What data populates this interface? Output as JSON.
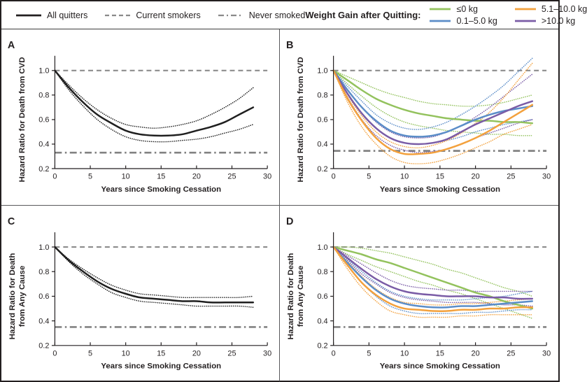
{
  "legend": {
    "left_items": [
      {
        "label": "All quitters",
        "style": "solid",
        "color": "#231f20"
      },
      {
        "label": "Current smokers",
        "style": "dashed",
        "color": "#8a8a8a"
      },
      {
        "label": "Never smoked",
        "style": "dashdot",
        "color": "#8a8a8a"
      }
    ],
    "weight_gain_title": "Weight Gain after Quitting:",
    "weight_items": [
      {
        "label": "≤0 kg",
        "color": "#93c25d"
      },
      {
        "label": "0.1–5.0 kg",
        "color": "#5b8dc8"
      },
      {
        "label": "5.1–10.0 kg",
        "color": "#f3a13d"
      },
      {
        "label": ">10.0 kg",
        "color": "#7a5ca6"
      }
    ]
  },
  "chart_data": [
    {
      "panel": "A",
      "type": "line",
      "ylabel_lines": [
        "Hazard Ratio for Death from CVD"
      ],
      "xlabel": "Years since Smoking Cessation",
      "xlim": [
        0,
        30
      ],
      "ylim": [
        0.2,
        1.12
      ],
      "xticks": [
        0,
        5,
        10,
        15,
        20,
        25,
        30
      ],
      "xtick_labels": [
        "0",
        "5",
        "10",
        "15",
        "20",
        "25",
        "30"
      ],
      "yticks": [
        0.2,
        0.4,
        0.6,
        0.8,
        1.0
      ],
      "ytick_labels": [
        "0.2",
        "0.4",
        "0.6",
        "0.8",
        "1.0"
      ],
      "grid": false,
      "x": [
        0,
        2,
        4,
        6,
        8,
        10,
        12,
        14,
        16,
        18,
        20,
        22,
        24,
        26,
        28
      ],
      "reference_lines": [
        {
          "label": "Current smokers",
          "value": 1.0,
          "style": "dashed",
          "color": "#8c8c8c"
        },
        {
          "label": "Never smoked",
          "value": 0.33,
          "style": "dashdot",
          "color": "#828282"
        }
      ],
      "series": [
        {
          "name": "All quitters",
          "color": "#1f1f1f",
          "values": [
            1.0,
            0.86,
            0.74,
            0.64,
            0.57,
            0.51,
            0.48,
            0.47,
            0.47,
            0.48,
            0.51,
            0.54,
            0.58,
            0.64,
            0.7
          ],
          "ci_upper": [
            1.0,
            0.88,
            0.77,
            0.68,
            0.61,
            0.56,
            0.54,
            0.53,
            0.54,
            0.56,
            0.59,
            0.64,
            0.7,
            0.77,
            0.86
          ],
          "ci_lower": [
            1.0,
            0.84,
            0.71,
            0.6,
            0.52,
            0.46,
            0.43,
            0.42,
            0.42,
            0.43,
            0.44,
            0.46,
            0.49,
            0.52,
            0.56
          ]
        }
      ]
    },
    {
      "panel": "B",
      "type": "line",
      "ylabel_lines": [
        "Hazard Ratio for Death from CVD"
      ],
      "xlabel": "Years since Smoking Cessation",
      "xlim": [
        0,
        30
      ],
      "ylim": [
        0.2,
        1.12
      ],
      "xticks": [
        0,
        5,
        10,
        15,
        20,
        25,
        30
      ],
      "xtick_labels": [
        "0",
        "5",
        "10",
        "15",
        "20",
        "25",
        "30"
      ],
      "yticks": [
        0.2,
        0.4,
        0.6,
        0.8,
        1.0
      ],
      "ytick_labels": [
        "0.2",
        "0.4",
        "0.6",
        "0.8",
        "1.0"
      ],
      "grid": false,
      "x": [
        0,
        2,
        4,
        6,
        8,
        10,
        12,
        14,
        16,
        18,
        20,
        22,
        24,
        26,
        28
      ],
      "reference_lines": [
        {
          "label": "Current smokers",
          "value": 1.0,
          "style": "dashed",
          "color": "#8c8c8c"
        },
        {
          "label": "Never smoked",
          "value": 0.345,
          "style": "dashdot",
          "color": "#828282"
        }
      ],
      "series": [
        {
          "name": "≤0 kg",
          "color": "#93c25d",
          "values": [
            1.0,
            0.92,
            0.84,
            0.77,
            0.72,
            0.68,
            0.65,
            0.63,
            0.61,
            0.6,
            0.59,
            0.59,
            0.58,
            0.58,
            0.57
          ],
          "ci_upper": [
            1.0,
            0.95,
            0.9,
            0.85,
            0.81,
            0.78,
            0.75,
            0.73,
            0.72,
            0.71,
            0.71,
            0.72,
            0.74,
            0.77,
            0.8
          ],
          "ci_lower": [
            1.0,
            0.89,
            0.79,
            0.7,
            0.63,
            0.58,
            0.55,
            0.53,
            0.51,
            0.5,
            0.49,
            0.48,
            0.48,
            0.47,
            0.47
          ]
        },
        {
          "name": "0.1–5.0 kg",
          "color": "#5b8dc8",
          "values": [
            1.0,
            0.84,
            0.7,
            0.59,
            0.51,
            0.47,
            0.46,
            0.47,
            0.5,
            0.55,
            0.6,
            0.64,
            0.67,
            0.69,
            0.71
          ],
          "ci_upper": [
            1.0,
            0.87,
            0.75,
            0.64,
            0.57,
            0.53,
            0.52,
            0.54,
            0.58,
            0.64,
            0.71,
            0.79,
            0.88,
            0.99,
            1.1
          ],
          "ci_lower": [
            1.0,
            0.81,
            0.65,
            0.53,
            0.45,
            0.41,
            0.4,
            0.41,
            0.43,
            0.46,
            0.5,
            0.53,
            0.56,
            0.58,
            0.6
          ]
        },
        {
          "name": ">10.0 kg",
          "color": "#7a5ca6",
          "values": [
            1.0,
            0.81,
            0.65,
            0.53,
            0.45,
            0.41,
            0.4,
            0.41,
            0.44,
            0.5,
            0.56,
            0.61,
            0.66,
            0.71,
            0.75
          ],
          "ci_upper": [
            1.0,
            0.84,
            0.7,
            0.58,
            0.5,
            0.46,
            0.45,
            0.46,
            0.5,
            0.55,
            0.62,
            0.7,
            0.79,
            0.88,
            0.97
          ],
          "ci_lower": [
            1.0,
            0.78,
            0.6,
            0.47,
            0.39,
            0.35,
            0.33,
            0.34,
            0.36,
            0.4,
            0.45,
            0.49,
            0.53,
            0.57,
            0.6
          ]
        },
        {
          "name": "5.1–10.0 kg",
          "color": "#f3a13d",
          "values": [
            1.0,
            0.77,
            0.59,
            0.45,
            0.36,
            0.32,
            0.32,
            0.33,
            0.36,
            0.4,
            0.45,
            0.51,
            0.58,
            0.65,
            0.72
          ],
          "ci_upper": [
            1.0,
            0.8,
            0.63,
            0.5,
            0.42,
            0.38,
            0.37,
            0.39,
            0.43,
            0.49,
            0.57,
            0.66,
            0.78,
            0.92,
            1.06
          ],
          "ci_lower": [
            1.0,
            0.74,
            0.54,
            0.4,
            0.3,
            0.25,
            0.24,
            0.25,
            0.28,
            0.32,
            0.37,
            0.42,
            0.48,
            0.52,
            0.56
          ]
        }
      ]
    },
    {
      "panel": "C",
      "type": "line",
      "ylabel_lines": [
        "Hazard Ratio for Death",
        "from Any Cause"
      ],
      "xlabel": "Years since Smoking Cessation",
      "xlim": [
        0,
        30
      ],
      "ylim": [
        0.2,
        1.12
      ],
      "xticks": [
        0,
        5,
        10,
        15,
        20,
        25,
        30
      ],
      "xtick_labels": [
        "0",
        "5",
        "10",
        "15",
        "20",
        "25",
        "30"
      ],
      "yticks": [
        0.2,
        0.4,
        0.6,
        0.8,
        1.0
      ],
      "ytick_labels": [
        "0.2",
        "0.4",
        "0.6",
        "0.8",
        "1.0"
      ],
      "grid": false,
      "x": [
        0,
        2,
        4,
        6,
        8,
        10,
        12,
        14,
        16,
        18,
        20,
        22,
        24,
        26,
        28
      ],
      "reference_lines": [
        {
          "label": "Current smokers",
          "value": 1.0,
          "style": "dashed",
          "color": "#8c8c8c"
        },
        {
          "label": "Never smoked",
          "value": 0.35,
          "style": "dashdot",
          "color": "#828282"
        }
      ],
      "series": [
        {
          "name": "All quitters",
          "color": "#1f1f1f",
          "values": [
            1.0,
            0.89,
            0.8,
            0.72,
            0.66,
            0.62,
            0.59,
            0.58,
            0.57,
            0.56,
            0.56,
            0.55,
            0.55,
            0.55,
            0.55
          ],
          "ci_upper": [
            1.0,
            0.9,
            0.82,
            0.75,
            0.69,
            0.65,
            0.62,
            0.61,
            0.6,
            0.59,
            0.59,
            0.59,
            0.59,
            0.59,
            0.6
          ],
          "ci_lower": [
            1.0,
            0.88,
            0.78,
            0.7,
            0.63,
            0.59,
            0.56,
            0.55,
            0.54,
            0.53,
            0.52,
            0.52,
            0.52,
            0.52,
            0.51
          ]
        }
      ]
    },
    {
      "panel": "D",
      "type": "line",
      "ylabel_lines": [
        "Hazard Ratio for Death",
        "from Any Cause"
      ],
      "xlabel": "Years since Smoking Cessation",
      "xlim": [
        0,
        30
      ],
      "ylim": [
        0.2,
        1.12
      ],
      "xticks": [
        0,
        5,
        10,
        15,
        20,
        25,
        30
      ],
      "xtick_labels": [
        "0",
        "5",
        "10",
        "15",
        "20",
        "25",
        "30"
      ],
      "yticks": [
        0.2,
        0.4,
        0.6,
        0.8,
        1.0
      ],
      "ytick_labels": [
        "0.2",
        "0.4",
        "0.6",
        "0.8",
        "1.0"
      ],
      "grid": false,
      "x": [
        0,
        2,
        4,
        6,
        8,
        10,
        12,
        14,
        16,
        18,
        20,
        22,
        24,
        26,
        28
      ],
      "reference_lines": [
        {
          "label": "Current smokers",
          "value": 1.0,
          "style": "dashed",
          "color": "#8c8c8c"
        },
        {
          "label": "Never smoked",
          "value": 0.35,
          "style": "dashdot",
          "color": "#828282"
        }
      ],
      "series": [
        {
          "name": "≤0 kg",
          "color": "#93c25d",
          "values": [
            1.0,
            0.97,
            0.94,
            0.9,
            0.87,
            0.83,
            0.79,
            0.75,
            0.71,
            0.67,
            0.63,
            0.6,
            0.56,
            0.53,
            0.5
          ],
          "ci_upper": [
            1.0,
            1.0,
            0.99,
            0.97,
            0.95,
            0.92,
            0.89,
            0.86,
            0.82,
            0.79,
            0.75,
            0.71,
            0.67,
            0.64,
            0.6
          ],
          "ci_lower": [
            1.0,
            0.94,
            0.89,
            0.84,
            0.8,
            0.76,
            0.72,
            0.69,
            0.65,
            0.62,
            0.58,
            0.54,
            0.5,
            0.46,
            0.42
          ]
        },
        {
          "name": "0.1–5.0 kg",
          "color": "#5b8dc8",
          "values": [
            1.0,
            0.87,
            0.75,
            0.65,
            0.58,
            0.54,
            0.52,
            0.51,
            0.51,
            0.52,
            0.52,
            0.53,
            0.54,
            0.55,
            0.56
          ],
          "ci_upper": [
            1.0,
            0.9,
            0.8,
            0.71,
            0.64,
            0.6,
            0.58,
            0.57,
            0.57,
            0.57,
            0.58,
            0.59,
            0.6,
            0.62,
            0.64
          ],
          "ci_lower": [
            1.0,
            0.85,
            0.71,
            0.6,
            0.52,
            0.48,
            0.46,
            0.46,
            0.46,
            0.46,
            0.47,
            0.47,
            0.48,
            0.49,
            0.49
          ]
        },
        {
          "name": ">10.0 kg",
          "color": "#7a5ca6",
          "values": [
            1.0,
            0.91,
            0.82,
            0.74,
            0.68,
            0.64,
            0.62,
            0.61,
            0.6,
            0.6,
            0.6,
            0.59,
            0.59,
            0.58,
            0.58
          ],
          "ci_upper": [
            1.0,
            0.93,
            0.86,
            0.79,
            0.73,
            0.69,
            0.67,
            0.66,
            0.65,
            0.65,
            0.64,
            0.64,
            0.64,
            0.64,
            0.64
          ],
          "ci_lower": [
            1.0,
            0.89,
            0.78,
            0.7,
            0.63,
            0.59,
            0.57,
            0.56,
            0.55,
            0.55,
            0.55,
            0.54,
            0.53,
            0.53,
            0.52
          ]
        },
        {
          "name": "5.1–10.0 kg",
          "color": "#f3a13d",
          "values": [
            1.0,
            0.85,
            0.71,
            0.61,
            0.54,
            0.5,
            0.49,
            0.48,
            0.48,
            0.49,
            0.49,
            0.5,
            0.5,
            0.51,
            0.51
          ],
          "ci_upper": [
            1.0,
            0.88,
            0.76,
            0.66,
            0.59,
            0.55,
            0.54,
            0.53,
            0.53,
            0.54,
            0.54,
            0.55,
            0.56,
            0.57,
            0.58
          ],
          "ci_lower": [
            1.0,
            0.82,
            0.67,
            0.56,
            0.48,
            0.45,
            0.43,
            0.43,
            0.43,
            0.44,
            0.44,
            0.45,
            0.45,
            0.45,
            0.45
          ]
        }
      ]
    }
  ]
}
